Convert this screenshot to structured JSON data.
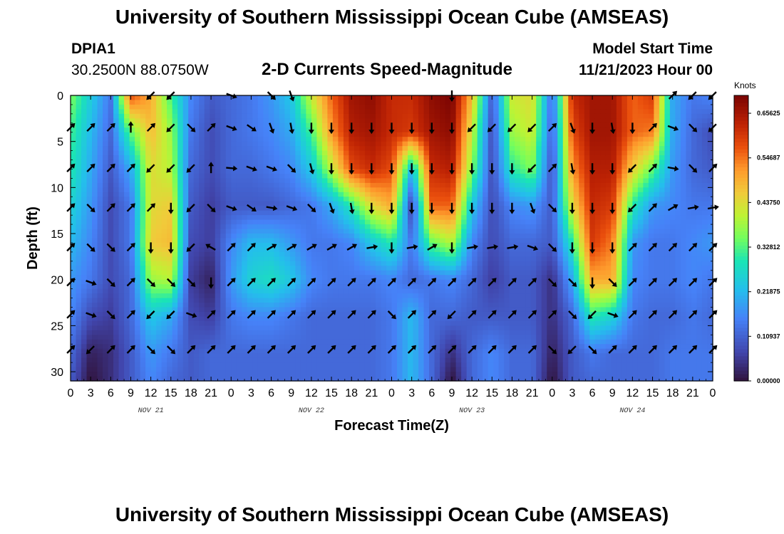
{
  "title": "University of Southern Mississippi Ocean Cube (AMSEAS)",
  "station": {
    "id": "DPIA1",
    "coords": "30.2500N  88.0750W"
  },
  "model_start": {
    "label": "Model Start Time",
    "value": "11/21/2023 Hour 00"
  },
  "chart_data": {
    "type": "heatmap",
    "title": "2-D Currents Speed-Magnitude",
    "xlabel": "Forecast Time(Z)",
    "ylabel": "Depth (ft)",
    "xlim": [
      0,
      96
    ],
    "ylim": [
      0,
      31
    ],
    "x_ticks": [
      0,
      3,
      6,
      9,
      12,
      15,
      18,
      21,
      24,
      27,
      30,
      33,
      36,
      39,
      42,
      45,
      48,
      51,
      54,
      57,
      60,
      63,
      66,
      69,
      72,
      75,
      78,
      81,
      84,
      87,
      90,
      93,
      96
    ],
    "x_tick_labels": [
      "0",
      "3",
      "6",
      "9",
      "12",
      "15",
      "18",
      "21",
      "0",
      "3",
      "6",
      "9",
      "12",
      "15",
      "18",
      "21",
      "0",
      "3",
      "6",
      "9",
      "12",
      "15",
      "18",
      "21",
      "0",
      "3",
      "6",
      "9",
      "12",
      "15",
      "18",
      "21",
      "0"
    ],
    "day_labels": [
      {
        "x": 12,
        "label": "NOV 21"
      },
      {
        "x": 36,
        "label": "NOV 22"
      },
      {
        "x": 60,
        "label": "NOV 23"
      },
      {
        "x": 84,
        "label": "NOV 24"
      }
    ],
    "y_ticks": [
      0,
      5,
      10,
      15,
      20,
      25,
      30
    ],
    "y_tick_labels": [
      "0",
      "5",
      "10",
      "15",
      "20",
      "25",
      "30"
    ],
    "colorbar": {
      "unit": "Knots",
      "min": 0.0,
      "max": 0.7,
      "labels": [
        "0.00000",
        "0.10937",
        "0.21875",
        "0.32812",
        "0.43750",
        "0.54687",
        "0.65625"
      ],
      "label_values": [
        0.0,
        0.10937,
        0.21875,
        0.32812,
        0.4375,
        0.54687,
        0.65625
      ]
    },
    "speed_grid": {
      "times": [
        0,
        3,
        6,
        9,
        12,
        15,
        18,
        21,
        24,
        27,
        30,
        33,
        36,
        39,
        42,
        45,
        48,
        51,
        54,
        57,
        60,
        63,
        66,
        69,
        72,
        75,
        78,
        81,
        84,
        87,
        90,
        93,
        96
      ],
      "depths": [
        0,
        4,
        8,
        12,
        16,
        20,
        24,
        28,
        31
      ],
      "values_knots": [
        [
          0.36,
          0.25,
          0.14,
          0.58,
          0.5,
          0.32,
          0.16,
          0.1,
          0.12,
          0.14,
          0.18,
          0.24,
          0.42,
          0.56,
          0.66,
          0.68,
          0.62,
          0.62,
          0.68,
          0.7,
          0.48,
          0.1,
          0.42,
          0.44,
          0.12,
          0.62,
          0.66,
          0.66,
          0.56,
          0.6,
          0.2,
          0.14,
          0.16
        ],
        [
          0.32,
          0.22,
          0.12,
          0.34,
          0.48,
          0.38,
          0.14,
          0.08,
          0.12,
          0.14,
          0.16,
          0.2,
          0.32,
          0.52,
          0.64,
          0.66,
          0.62,
          0.6,
          0.66,
          0.68,
          0.42,
          0.08,
          0.38,
          0.42,
          0.1,
          0.58,
          0.66,
          0.66,
          0.56,
          0.54,
          0.2,
          0.12,
          0.08
        ],
        [
          0.3,
          0.2,
          0.1,
          0.2,
          0.44,
          0.4,
          0.12,
          0.08,
          0.12,
          0.12,
          0.14,
          0.16,
          0.24,
          0.4,
          0.58,
          0.62,
          0.58,
          0.22,
          0.62,
          0.64,
          0.36,
          0.08,
          0.3,
          0.36,
          0.08,
          0.52,
          0.64,
          0.64,
          0.46,
          0.34,
          0.18,
          0.12,
          0.1
        ],
        [
          0.26,
          0.18,
          0.08,
          0.14,
          0.44,
          0.46,
          0.1,
          0.06,
          0.1,
          0.1,
          0.1,
          0.12,
          0.14,
          0.2,
          0.3,
          0.44,
          0.5,
          0.06,
          0.56,
          0.56,
          0.24,
          0.08,
          0.16,
          0.18,
          0.1,
          0.44,
          0.62,
          0.6,
          0.3,
          0.18,
          0.16,
          0.14,
          0.14
        ],
        [
          0.22,
          0.16,
          0.08,
          0.14,
          0.46,
          0.48,
          0.08,
          0.06,
          0.16,
          0.22,
          0.22,
          0.18,
          0.14,
          0.14,
          0.16,
          0.24,
          0.3,
          0.14,
          0.34,
          0.4,
          0.16,
          0.08,
          0.12,
          0.12,
          0.1,
          0.3,
          0.6,
          0.54,
          0.18,
          0.14,
          0.14,
          0.16,
          0.18
        ],
        [
          0.18,
          0.14,
          0.08,
          0.12,
          0.38,
          0.4,
          0.06,
          0.02,
          0.18,
          0.26,
          0.28,
          0.24,
          0.16,
          0.14,
          0.14,
          0.14,
          0.16,
          0.12,
          0.14,
          0.16,
          0.12,
          0.06,
          0.1,
          0.1,
          0.04,
          0.2,
          0.5,
          0.5,
          0.16,
          0.14,
          0.14,
          0.16,
          0.14
        ],
        [
          0.16,
          0.08,
          0.06,
          0.12,
          0.24,
          0.2,
          0.08,
          0.06,
          0.14,
          0.16,
          0.16,
          0.14,
          0.12,
          0.12,
          0.12,
          0.12,
          0.14,
          0.22,
          0.12,
          0.12,
          0.1,
          0.1,
          0.1,
          0.1,
          0.04,
          0.12,
          0.3,
          0.26,
          0.14,
          0.12,
          0.12,
          0.14,
          0.12
        ],
        [
          0.12,
          0.02,
          0.04,
          0.1,
          0.18,
          0.14,
          0.1,
          0.12,
          0.12,
          0.12,
          0.12,
          0.12,
          0.12,
          0.12,
          0.12,
          0.12,
          0.14,
          0.22,
          0.12,
          0.04,
          0.12,
          0.16,
          0.12,
          0.12,
          0.02,
          0.1,
          0.14,
          0.12,
          0.12,
          0.12,
          0.14,
          0.14,
          0.14
        ],
        [
          0.1,
          0.0,
          0.04,
          0.1,
          0.16,
          0.12,
          0.1,
          0.12,
          0.12,
          0.12,
          0.12,
          0.12,
          0.12,
          0.12,
          0.12,
          0.12,
          0.14,
          0.22,
          0.12,
          0.0,
          0.12,
          0.16,
          0.12,
          0.12,
          0.0,
          0.1,
          0.12,
          0.12,
          0.12,
          0.12,
          0.14,
          0.14,
          0.14
        ]
      ]
    },
    "vectors": {
      "depths": [
        0,
        3.5,
        7.9,
        12.2,
        16.5,
        20.3,
        23.8,
        27.6
      ],
      "times": [
        0,
        3,
        6,
        9,
        12,
        15,
        18,
        21,
        24,
        27,
        30,
        33,
        36,
        39,
        42,
        45,
        48,
        51,
        54,
        57,
        60,
        63,
        66,
        69,
        72,
        75,
        78,
        81,
        84,
        87,
        90,
        93,
        96
      ],
      "direction_deg": [
        [
          null,
          null,
          null,
          null,
          225,
          225,
          null,
          null,
          110,
          null,
          135,
          160,
          null,
          null,
          null,
          null,
          null,
          null,
          null,
          180,
          null,
          null,
          null,
          null,
          null,
          null,
          null,
          null,
          null,
          null,
          45,
          225,
          225
        ],
        [
          45,
          45,
          45,
          0,
          45,
          225,
          135,
          45,
          110,
          125,
          160,
          170,
          180,
          180,
          180,
          180,
          180,
          180,
          180,
          180,
          225,
          225,
          225,
          225,
          45,
          160,
          180,
          170,
          180,
          45,
          110,
          135,
          225
        ],
        [
          45,
          45,
          45,
          45,
          225,
          225,
          225,
          0,
          95,
          110,
          110,
          135,
          165,
          180,
          180,
          180,
          180,
          180,
          180,
          180,
          180,
          180,
          180,
          225,
          45,
          170,
          180,
          180,
          225,
          45,
          100,
          135,
          45
        ],
        [
          45,
          135,
          45,
          45,
          45,
          180,
          225,
          135,
          110,
          125,
          100,
          110,
          135,
          160,
          170,
          180,
          180,
          180,
          180,
          180,
          180,
          180,
          180,
          160,
          135,
          180,
          180,
          180,
          225,
          45,
          60,
          80,
          80
        ],
        [
          45,
          135,
          135,
          45,
          180,
          180,
          225,
          300,
          45,
          45,
          60,
          60,
          60,
          60,
          60,
          80,
          180,
          80,
          60,
          180,
          80,
          80,
          80,
          110,
          135,
          180,
          180,
          180,
          45,
          45,
          45,
          45,
          45
        ],
        [
          45,
          110,
          135,
          45,
          135,
          135,
          135,
          180,
          45,
          45,
          45,
          45,
          45,
          45,
          45,
          45,
          45,
          45,
          45,
          45,
          45,
          45,
          45,
          45,
          135,
          135,
          180,
          135,
          45,
          45,
          45,
          45,
          45
        ],
        [
          45,
          110,
          135,
          45,
          225,
          225,
          110,
          45,
          45,
          45,
          45,
          45,
          45,
          45,
          45,
          45,
          135,
          45,
          45,
          225,
          45,
          45,
          45,
          45,
          45,
          135,
          225,
          110,
          45,
          45,
          45,
          45,
          45
        ],
        [
          45,
          225,
          45,
          45,
          135,
          135,
          45,
          45,
          45,
          45,
          45,
          45,
          45,
          45,
          45,
          45,
          45,
          45,
          45,
          45,
          45,
          45,
          45,
          45,
          135,
          225,
          135,
          45,
          45,
          45,
          45,
          45,
          45
        ]
      ]
    }
  }
}
